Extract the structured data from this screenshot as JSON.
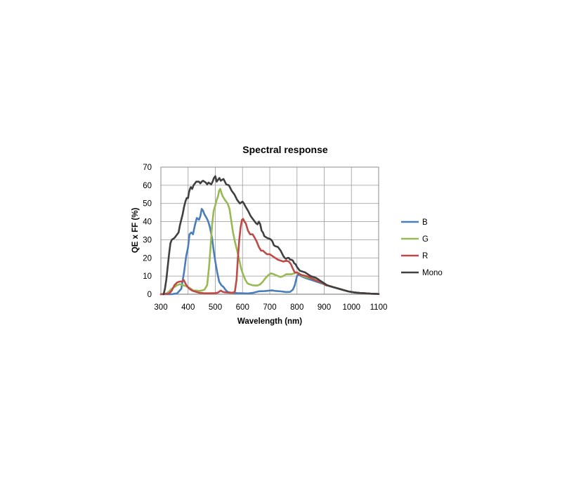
{
  "chart_data": {
    "type": "line",
    "title": "Spectral response",
    "xlabel": "Wavelength (nm)",
    "ylabel": "QE x FF (%)",
    "xlim": [
      300,
      1100
    ],
    "ylim": [
      0,
      70
    ],
    "xticks": [
      300,
      400,
      500,
      600,
      700,
      800,
      900,
      1000,
      1100
    ],
    "yticks": [
      0,
      10,
      20,
      30,
      40,
      50,
      60,
      70
    ],
    "grid": true,
    "legend_position": "right",
    "series": [
      {
        "name": "B",
        "color": "#4A7EBB",
        "points": [
          [
            300,
            0
          ],
          [
            340,
            0
          ],
          [
            360,
            0.5
          ],
          [
            375,
            3
          ],
          [
            385,
            12
          ],
          [
            393,
            21
          ],
          [
            400,
            26
          ],
          [
            405,
            33
          ],
          [
            412,
            34
          ],
          [
            418,
            33
          ],
          [
            425,
            38
          ],
          [
            432,
            42
          ],
          [
            440,
            41
          ],
          [
            445,
            43
          ],
          [
            450,
            47
          ],
          [
            455,
            46
          ],
          [
            460,
            44
          ],
          [
            468,
            42
          ],
          [
            474,
            40
          ],
          [
            480,
            37
          ],
          [
            488,
            31
          ],
          [
            494,
            24
          ],
          [
            500,
            18
          ],
          [
            507,
            12
          ],
          [
            514,
            7
          ],
          [
            522,
            5
          ],
          [
            530,
            4
          ],
          [
            537,
            2.5
          ],
          [
            545,
            1.3
          ],
          [
            552,
            1
          ],
          [
            560,
            0.8
          ],
          [
            580,
            0.6
          ],
          [
            600,
            0.5
          ],
          [
            620,
            0.4
          ],
          [
            640,
            0.8
          ],
          [
            660,
            1.6
          ],
          [
            680,
            1.7
          ],
          [
            700,
            2.0
          ],
          [
            710,
            2.1
          ],
          [
            720,
            1.8
          ],
          [
            740,
            1.6
          ],
          [
            760,
            1.2
          ],
          [
            775,
            1.3
          ],
          [
            785,
            2.5
          ],
          [
            792,
            5
          ],
          [
            800,
            10
          ],
          [
            806,
            11
          ],
          [
            815,
            10
          ],
          [
            830,
            9
          ],
          [
            850,
            8
          ],
          [
            870,
            7
          ],
          [
            890,
            6
          ],
          [
            910,
            5
          ],
          [
            930,
            4
          ],
          [
            950,
            3.2
          ],
          [
            970,
            2.3
          ],
          [
            990,
            1.5
          ],
          [
            1010,
            1.0
          ],
          [
            1030,
            0.7
          ],
          [
            1050,
            0.5
          ],
          [
            1070,
            0.3
          ],
          [
            1090,
            0.2
          ],
          [
            1100,
            0.1
          ]
        ]
      },
      {
        "name": "G",
        "color": "#98B954",
        "points": [
          [
            300,
            0
          ],
          [
            320,
            0.3
          ],
          [
            330,
            1.5
          ],
          [
            340,
            3
          ],
          [
            350,
            4
          ],
          [
            360,
            5
          ],
          [
            370,
            5.5
          ],
          [
            380,
            5
          ],
          [
            392,
            4.5
          ],
          [
            400,
            4
          ],
          [
            410,
            3
          ],
          [
            420,
            2
          ],
          [
            430,
            2
          ],
          [
            440,
            1.8
          ],
          [
            450,
            2
          ],
          [
            460,
            2.5
          ],
          [
            470,
            5
          ],
          [
            477,
            15
          ],
          [
            482,
            25
          ],
          [
            488,
            38
          ],
          [
            494,
            46
          ],
          [
            500,
            49
          ],
          [
            505,
            52
          ],
          [
            510,
            54
          ],
          [
            514,
            57
          ],
          [
            518,
            58
          ],
          [
            522,
            56
          ],
          [
            527,
            54
          ],
          [
            535,
            52
          ],
          [
            545,
            50
          ],
          [
            552,
            47
          ],
          [
            558,
            41
          ],
          [
            565,
            34
          ],
          [
            572,
            29
          ],
          [
            580,
            24
          ],
          [
            588,
            19
          ],
          [
            595,
            14
          ],
          [
            602,
            11
          ],
          [
            610,
            8
          ],
          [
            618,
            6
          ],
          [
            625,
            5.5
          ],
          [
            635,
            5
          ],
          [
            645,
            4.8
          ],
          [
            655,
            4.8
          ],
          [
            665,
            5.5
          ],
          [
            675,
            7
          ],
          [
            685,
            9
          ],
          [
            695,
            10.5
          ],
          [
            705,
            11.5
          ],
          [
            715,
            11
          ],
          [
            722,
            10.5
          ],
          [
            730,
            10
          ],
          [
            740,
            9.5
          ],
          [
            750,
            10
          ],
          [
            760,
            11
          ],
          [
            770,
            11
          ],
          [
            780,
            11
          ],
          [
            790,
            11.5
          ],
          [
            800,
            12
          ],
          [
            808,
            11.5
          ],
          [
            815,
            10.5
          ],
          [
            822,
            10
          ],
          [
            830,
            9.5
          ],
          [
            845,
            9
          ],
          [
            860,
            8.5
          ],
          [
            875,
            7.5
          ],
          [
            890,
            6.5
          ],
          [
            905,
            5
          ],
          [
            920,
            4.5
          ],
          [
            935,
            3.8
          ],
          [
            950,
            3.2
          ],
          [
            970,
            2.3
          ],
          [
            990,
            1.5
          ],
          [
            1010,
            1.0
          ],
          [
            1030,
            0.7
          ],
          [
            1050,
            0.5
          ],
          [
            1070,
            0.3
          ],
          [
            1090,
            0.2
          ],
          [
            1100,
            0.1
          ]
        ]
      },
      {
        "name": "R",
        "color": "#BE4B48",
        "points": [
          [
            300,
            0
          ],
          [
            330,
            0.3
          ],
          [
            340,
            2
          ],
          [
            350,
            5
          ],
          [
            360,
            6.5
          ],
          [
            370,
            7
          ],
          [
            378,
            7
          ],
          [
            384,
            7.8
          ],
          [
            390,
            6
          ],
          [
            398,
            4
          ],
          [
            405,
            3
          ],
          [
            415,
            2
          ],
          [
            425,
            1.5
          ],
          [
            440,
            0.8
          ],
          [
            460,
            0.5
          ],
          [
            480,
            0.5
          ],
          [
            500,
            0.6
          ],
          [
            510,
            0.9
          ],
          [
            515,
            1.5
          ],
          [
            520,
            2
          ],
          [
            525,
            1.5
          ],
          [
            530,
            1.2
          ],
          [
            540,
            1.0
          ],
          [
            555,
            0.8
          ],
          [
            565,
            0.8
          ],
          [
            572,
            1.5
          ],
          [
            578,
            8
          ],
          [
            583,
            20
          ],
          [
            588,
            30
          ],
          [
            593,
            37
          ],
          [
            598,
            41
          ],
          [
            602,
            41.5
          ],
          [
            607,
            40
          ],
          [
            612,
            39
          ],
          [
            620,
            35
          ],
          [
            628,
            33
          ],
          [
            637,
            33
          ],
          [
            645,
            31
          ],
          [
            652,
            29
          ],
          [
            660,
            26
          ],
          [
            668,
            24
          ],
          [
            675,
            24
          ],
          [
            682,
            23
          ],
          [
            690,
            22
          ],
          [
            700,
            22
          ],
          [
            710,
            21
          ],
          [
            720,
            20
          ],
          [
            730,
            19
          ],
          [
            740,
            18.5
          ],
          [
            750,
            18
          ],
          [
            760,
            18.5
          ],
          [
            770,
            18
          ],
          [
            778,
            16.5
          ],
          [
            785,
            14
          ],
          [
            792,
            12
          ],
          [
            800,
            12
          ],
          [
            810,
            11
          ],
          [
            820,
            10.5
          ],
          [
            835,
            10
          ],
          [
            850,
            9
          ],
          [
            870,
            7.5
          ],
          [
            890,
            6.5
          ],
          [
            905,
            5
          ],
          [
            920,
            4.5
          ],
          [
            935,
            3.8
          ],
          [
            950,
            3.2
          ],
          [
            970,
            2.3
          ],
          [
            990,
            1.5
          ],
          [
            1010,
            1.0
          ],
          [
            1030,
            0.7
          ],
          [
            1050,
            0.5
          ],
          [
            1070,
            0.3
          ],
          [
            1090,
            0.2
          ],
          [
            1100,
            0.1
          ]
        ]
      },
      {
        "name": "Mono",
        "color": "#404040",
        "points": [
          [
            310,
            0
          ],
          [
            315,
            3
          ],
          [
            320,
            8
          ],
          [
            325,
            15
          ],
          [
            330,
            22
          ],
          [
            335,
            28
          ],
          [
            340,
            30
          ],
          [
            345,
            30.5
          ],
          [
            350,
            31
          ],
          [
            355,
            32
          ],
          [
            360,
            33
          ],
          [
            365,
            34
          ],
          [
            370,
            38
          ],
          [
            375,
            41
          ],
          [
            380,
            44
          ],
          [
            385,
            48
          ],
          [
            390,
            51
          ],
          [
            395,
            53
          ],
          [
            400,
            53
          ],
          [
            403,
            56
          ],
          [
            407,
            58
          ],
          [
            410,
            59
          ],
          [
            415,
            58
          ],
          [
            420,
            60
          ],
          [
            425,
            61
          ],
          [
            430,
            62
          ],
          [
            440,
            62
          ],
          [
            445,
            61
          ],
          [
            450,
            62
          ],
          [
            455,
            62.5
          ],
          [
            460,
            62
          ],
          [
            465,
            61.5
          ],
          [
            470,
            60.5
          ],
          [
            475,
            61.5
          ],
          [
            480,
            61
          ],
          [
            485,
            60.5
          ],
          [
            490,
            62
          ],
          [
            495,
            64
          ],
          [
            500,
            65
          ],
          [
            505,
            62
          ],
          [
            510,
            63
          ],
          [
            515,
            64
          ],
          [
            520,
            62.5
          ],
          [
            525,
            63
          ],
          [
            530,
            63.5
          ],
          [
            535,
            62
          ],
          [
            540,
            60.5
          ],
          [
            550,
            60
          ],
          [
            560,
            57
          ],
          [
            570,
            55
          ],
          [
            580,
            52
          ],
          [
            590,
            50
          ],
          [
            600,
            51
          ],
          [
            605,
            50
          ],
          [
            610,
            48.5
          ],
          [
            620,
            46
          ],
          [
            630,
            43
          ],
          [
            640,
            41
          ],
          [
            650,
            39
          ],
          [
            655,
            38.5
          ],
          [
            660,
            40
          ],
          [
            665,
            38.5
          ],
          [
            670,
            35
          ],
          [
            675,
            34
          ],
          [
            680,
            32
          ],
          [
            690,
            31
          ],
          [
            700,
            30.5
          ],
          [
            705,
            30
          ],
          [
            710,
            29
          ],
          [
            715,
            27
          ],
          [
            720,
            26.5
          ],
          [
            730,
            26
          ],
          [
            735,
            25
          ],
          [
            740,
            24
          ],
          [
            745,
            22.5
          ],
          [
            750,
            21
          ],
          [
            755,
            20
          ],
          [
            760,
            19.5
          ],
          [
            765,
            20
          ],
          [
            770,
            20
          ],
          [
            775,
            19
          ],
          [
            780,
            19
          ],
          [
            785,
            18.5
          ],
          [
            790,
            17
          ],
          [
            795,
            16.5
          ],
          [
            800,
            15
          ],
          [
            810,
            13
          ],
          [
            820,
            12.5
          ],
          [
            830,
            12
          ],
          [
            840,
            11
          ],
          [
            850,
            10
          ],
          [
            860,
            9.5
          ],
          [
            870,
            9
          ],
          [
            880,
            8
          ],
          [
            890,
            7
          ],
          [
            900,
            6
          ],
          [
            910,
            5
          ],
          [
            920,
            4.5
          ],
          [
            935,
            3.8
          ],
          [
            950,
            3.2
          ],
          [
            970,
            2.3
          ],
          [
            990,
            1.5
          ],
          [
            1010,
            1.0
          ],
          [
            1030,
            0.7
          ],
          [
            1050,
            0.5
          ],
          [
            1070,
            0.3
          ],
          [
            1090,
            0.2
          ],
          [
            1100,
            0.1
          ]
        ]
      }
    ]
  }
}
